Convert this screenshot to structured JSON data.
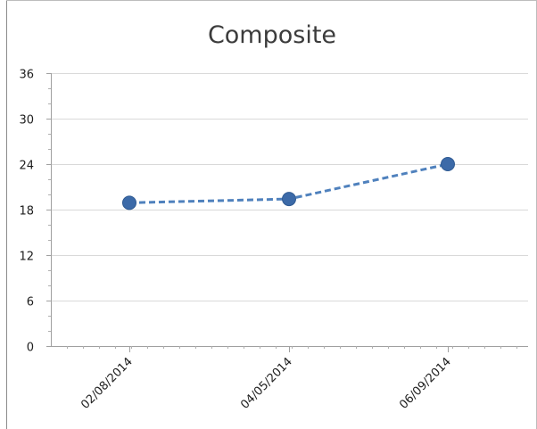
{
  "chart_data": {
    "type": "line",
    "title": "Composite",
    "xlabel": "",
    "ylabel": "",
    "x": [
      "02/08/2014",
      "04/05/2014",
      "06/09/2014"
    ],
    "series": [
      {
        "values": [
          18.9,
          19.4,
          24.0
        ],
        "color": "#4f81bd",
        "marker_color": "#3c6aa8",
        "line_style": "dashed"
      }
    ],
    "ylim": [
      0,
      36
    ],
    "yticks": [
      "0",
      "6",
      "12",
      "18",
      "24",
      "30",
      "36"
    ],
    "grid": true,
    "legend": "none"
  }
}
